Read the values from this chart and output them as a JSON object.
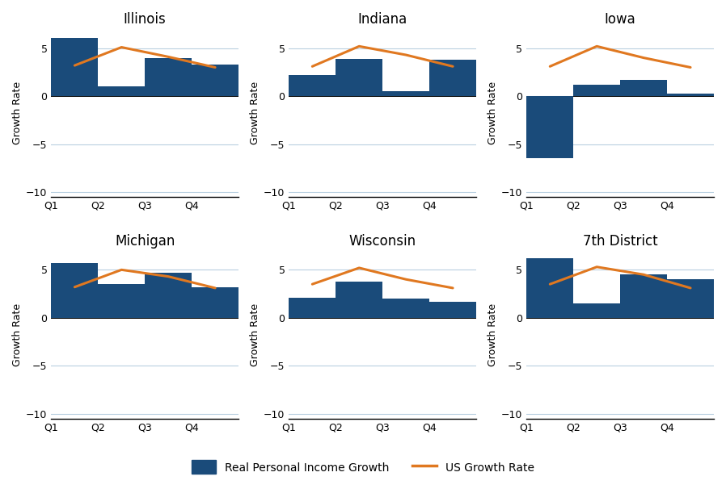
{
  "subplots": [
    {
      "title": "Illinois",
      "bars": [
        6.1,
        1.0,
        4.0,
        3.3
      ],
      "us_line": [
        3.2,
        5.1,
        4.1,
        3.0
      ]
    },
    {
      "title": "Indiana",
      "bars": [
        2.2,
        3.9,
        0.5,
        3.8
      ],
      "us_line": [
        3.1,
        5.2,
        4.3,
        3.1
      ]
    },
    {
      "title": "Iowa",
      "bars": [
        -6.5,
        1.2,
        1.7,
        0.3
      ],
      "us_line": [
        3.1,
        5.2,
        4.0,
        3.0
      ]
    },
    {
      "title": "Michigan",
      "bars": [
        5.7,
        3.5,
        4.7,
        3.2
      ],
      "us_line": [
        3.2,
        5.0,
        4.3,
        3.1
      ]
    },
    {
      "title": "Wisconsin",
      "bars": [
        2.1,
        3.8,
        2.0,
        1.7
      ],
      "us_line": [
        3.5,
        5.2,
        4.0,
        3.1
      ]
    },
    {
      "title": "7th District",
      "bars": [
        6.2,
        1.5,
        4.5,
        4.0
      ],
      "us_line": [
        3.5,
        5.3,
        4.5,
        3.1
      ]
    }
  ],
  "quarters": [
    "Q1",
    "Q2",
    "Q3",
    "Q4"
  ],
  "bar_color": "#1a4b7a",
  "line_color": "#e07820",
  "ylim": [
    -10.5,
    7
  ],
  "yticks": [
    -10,
    -5,
    0,
    5
  ],
  "ylabel": "Growth Rate",
  "legend_bar_label": "Real Personal Income Growth",
  "legend_line_label": "US Growth Rate",
  "background_color": "#ffffff",
  "grid_color": "#b8cfe0",
  "line_width": 2.2
}
